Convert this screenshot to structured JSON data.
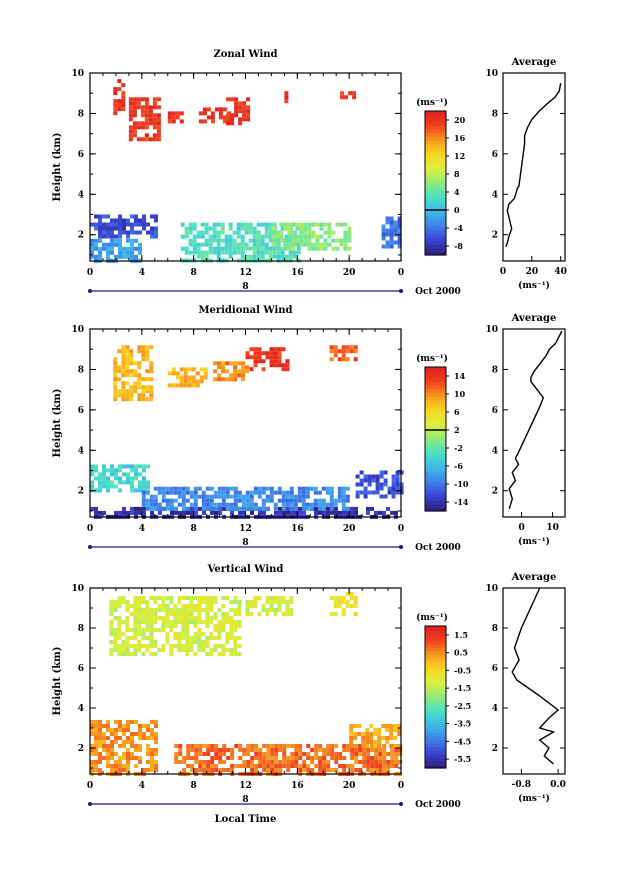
{
  "colors": {
    "ramp": [
      "#2b1d6e",
      "#3b3fd0",
      "#3f7fe8",
      "#3fb7e8",
      "#48e0c8",
      "#8fe880",
      "#d8f040",
      "#f8d820",
      "#f89a20",
      "#f04020",
      "#e02020"
    ]
  },
  "chart_data": [
    {
      "type": "heatmap",
      "title": "Zonal Wind",
      "ylabel": "Height (km)",
      "xlabel": "",
      "x_ticks": [
        "0",
        "4",
        "8",
        "12",
        "16",
        "20",
        "0"
      ],
      "xlim": [
        0,
        24
      ],
      "ylim": [
        0.7,
        10
      ],
      "y_ticks": [
        "2",
        "4",
        "6",
        "8",
        "10"
      ],
      "date_marker": "8",
      "date_label": "Oct 2000",
      "colorbar": {
        "unit": "(ms⁻¹)",
        "ticks": [
          "-8",
          "-4",
          "0",
          "4",
          "8",
          "12",
          "16",
          "20"
        ],
        "range": [
          -10,
          22
        ],
        "zero_line": 0
      },
      "patches": [
        {
          "x": [
            1.8,
            2.6
          ],
          "y": [
            8.0,
            9.7
          ],
          "value": 20
        },
        {
          "x": [
            3.0,
            5.4
          ],
          "y": [
            6.8,
            8.8
          ],
          "value": 20
        },
        {
          "x": [
            6.0,
            7.0
          ],
          "y": [
            7.7,
            8.1
          ],
          "value": 20
        },
        {
          "x": [
            8.4,
            10.6
          ],
          "y": [
            7.6,
            8.3
          ],
          "value": 20
        },
        {
          "x": [
            10.5,
            12.1
          ],
          "y": [
            7.5,
            8.8
          ],
          "value": 20
        },
        {
          "x": [
            15.0,
            15.3
          ],
          "y": [
            8.6,
            9.1
          ],
          "value": 20
        },
        {
          "x": [
            19.3,
            20.4
          ],
          "y": [
            8.8,
            9.1
          ],
          "value": 20
        },
        {
          "x": [
            0.0,
            5.0
          ],
          "y": [
            2.0,
            3.0
          ],
          "value": -6
        },
        {
          "x": [
            0.0,
            4.0
          ],
          "y": [
            0.7,
            1.8
          ],
          "value": -2
        },
        {
          "x": [
            7.0,
            16.0
          ],
          "y": [
            0.7,
            2.6
          ],
          "value": 3
        },
        {
          "x": [
            14.0,
            20.0
          ],
          "y": [
            1.4,
            2.6
          ],
          "value": 6
        },
        {
          "x": [
            22.5,
            24.0
          ],
          "y": [
            1.5,
            2.9
          ],
          "value": -4
        }
      ],
      "profile": {
        "title": "Average",
        "xlabel": "(ms⁻¹)",
        "x_ticks": [
          "0",
          "20",
          "40"
        ],
        "xlim": [
          0,
          43
        ],
        "y_ticks": [
          "2",
          "4",
          "6",
          "8",
          "10"
        ],
        "ylim": [
          0.7,
          10
        ],
        "x": [
          2,
          3,
          4,
          6,
          5,
          4,
          3,
          4,
          8,
          10,
          11,
          15,
          15,
          17,
          20,
          25,
          31,
          36,
          39,
          40
        ],
        "y": [
          1.4,
          1.6,
          1.9,
          2.3,
          2.6,
          2.9,
          3.2,
          3.5,
          3.8,
          4.3,
          4.4,
          6.5,
          6.9,
          7.3,
          7.7,
          8.1,
          8.5,
          8.8,
          9.1,
          9.5
        ]
      }
    },
    {
      "type": "heatmap",
      "title": "Meridional Wind",
      "ylabel": "Height (km)",
      "xlabel": "",
      "x_ticks": [
        "0",
        "4",
        "8",
        "12",
        "16",
        "20",
        "0"
      ],
      "xlim": [
        0,
        24
      ],
      "ylim": [
        0.7,
        10
      ],
      "y_ticks": [
        "2",
        "4",
        "6",
        "8",
        "10"
      ],
      "date_marker": "8",
      "date_label": "Oct 2000",
      "colorbar": {
        "unit": "(ms⁻¹)",
        "ticks": [
          "-14",
          "-10",
          "-6",
          "-2",
          "2",
          "6",
          "10",
          "14"
        ],
        "range": [
          -16,
          16
        ],
        "zero_line": 2
      },
      "patches": [
        {
          "x": [
            1.8,
            4.8
          ],
          "y": [
            6.6,
            9.2
          ],
          "value": 8
        },
        {
          "x": [
            6.0,
            9.0
          ],
          "y": [
            7.3,
            8.1
          ],
          "value": 8
        },
        {
          "x": [
            9.5,
            12.0
          ],
          "y": [
            7.6,
            8.4
          ],
          "value": 10
        },
        {
          "x": [
            12.0,
            15.2
          ],
          "y": [
            8.0,
            9.1
          ],
          "value": 14
        },
        {
          "x": [
            18.5,
            20.4
          ],
          "y": [
            8.6,
            9.2
          ],
          "value": 12
        },
        {
          "x": [
            0.0,
            4.5
          ],
          "y": [
            2.0,
            3.3
          ],
          "value": -4
        },
        {
          "x": [
            0.0,
            24.0
          ],
          "y": [
            0.7,
            1.2
          ],
          "value": -14
        },
        {
          "x": [
            4.0,
            20.0
          ],
          "y": [
            1.2,
            2.2
          ],
          "value": -9
        },
        {
          "x": [
            20.5,
            24.0
          ],
          "y": [
            1.8,
            3.0
          ],
          "value": -12
        }
      ],
      "profile": {
        "title": "Average",
        "xlabel": "(ms⁻¹)",
        "x_ticks": [
          "0",
          "10"
        ],
        "xlim": [
          -6,
          14
        ],
        "y_ticks": [
          "2",
          "4",
          "6",
          "8",
          "10"
        ],
        "ylim": [
          0.7,
          10
        ],
        "x": [
          -4,
          -3,
          -4,
          -2,
          -3,
          -1,
          -2,
          -1,
          6,
          7,
          5,
          3,
          3,
          4,
          6,
          8,
          9,
          11,
          12,
          13
        ],
        "y": [
          1.1,
          1.6,
          2.1,
          2.5,
          2.9,
          3.3,
          3.6,
          3.9,
          6.2,
          6.6,
          7.0,
          7.4,
          7.6,
          7.9,
          8.3,
          8.7,
          9.0,
          9.3,
          9.6,
          9.9
        ]
      }
    },
    {
      "type": "heatmap",
      "title": "Vertical Wind",
      "ylabel": "Height (km)",
      "xlabel": "Local Time",
      "x_ticks": [
        "0",
        "4",
        "8",
        "12",
        "16",
        "20",
        "0"
      ],
      "xlim": [
        0,
        24
      ],
      "ylim": [
        0.7,
        10
      ],
      "y_ticks": [
        "2",
        "4",
        "6",
        "8",
        "10"
      ],
      "date_marker": "8",
      "date_label": "Oct 2000",
      "colorbar": {
        "unit": "(ms⁻¹)",
        "ticks": [
          "-5.5",
          "-4.5",
          "-3.5",
          "-2.5",
          "-1.5",
          "-0.5",
          "0.5",
          "1.5"
        ],
        "range": [
          -6,
          2
        ],
        "zero_line": null
      },
      "patches": [
        {
          "x": [
            1.5,
            11.5
          ],
          "y": [
            6.6,
            9.6
          ],
          "value": -1.2
        },
        {
          "x": [
            12.0,
            15.5
          ],
          "y": [
            8.6,
            9.6
          ],
          "value": -1.2
        },
        {
          "x": [
            18.5,
            20.5
          ],
          "y": [
            8.6,
            9.8
          ],
          "value": -0.8
        },
        {
          "x": [
            0.0,
            5.0
          ],
          "y": [
            0.7,
            3.4
          ],
          "value": 0.4
        },
        {
          "x": [
            6.5,
            24.0
          ],
          "y": [
            0.7,
            2.2
          ],
          "value": 0.8
        },
        {
          "x": [
            20.0,
            24.0
          ],
          "y": [
            2.0,
            3.2
          ],
          "value": 0.2
        }
      ],
      "profile": {
        "title": "Average",
        "xlabel": "(ms⁻¹)",
        "x_ticks": [
          "-0.8",
          "0.0"
        ],
        "xlim": [
          -1.2,
          0.15
        ],
        "y_ticks": [
          "2",
          "4",
          "6",
          "8",
          "10"
        ],
        "ylim": [
          0.7,
          10
        ],
        "x": [
          -0.1,
          -0.3,
          -0.2,
          -0.4,
          -0.1,
          -0.4,
          -0.2,
          0.0,
          -0.4,
          -0.9,
          -1.0,
          -0.85,
          -0.95,
          -0.8,
          -0.6,
          -0.4
        ],
        "y": [
          1.2,
          1.6,
          2.0,
          2.4,
          2.8,
          3.0,
          3.5,
          3.9,
          4.6,
          5.4,
          5.8,
          6.4,
          7.0,
          8.0,
          9.0,
          10.0
        ]
      }
    }
  ]
}
